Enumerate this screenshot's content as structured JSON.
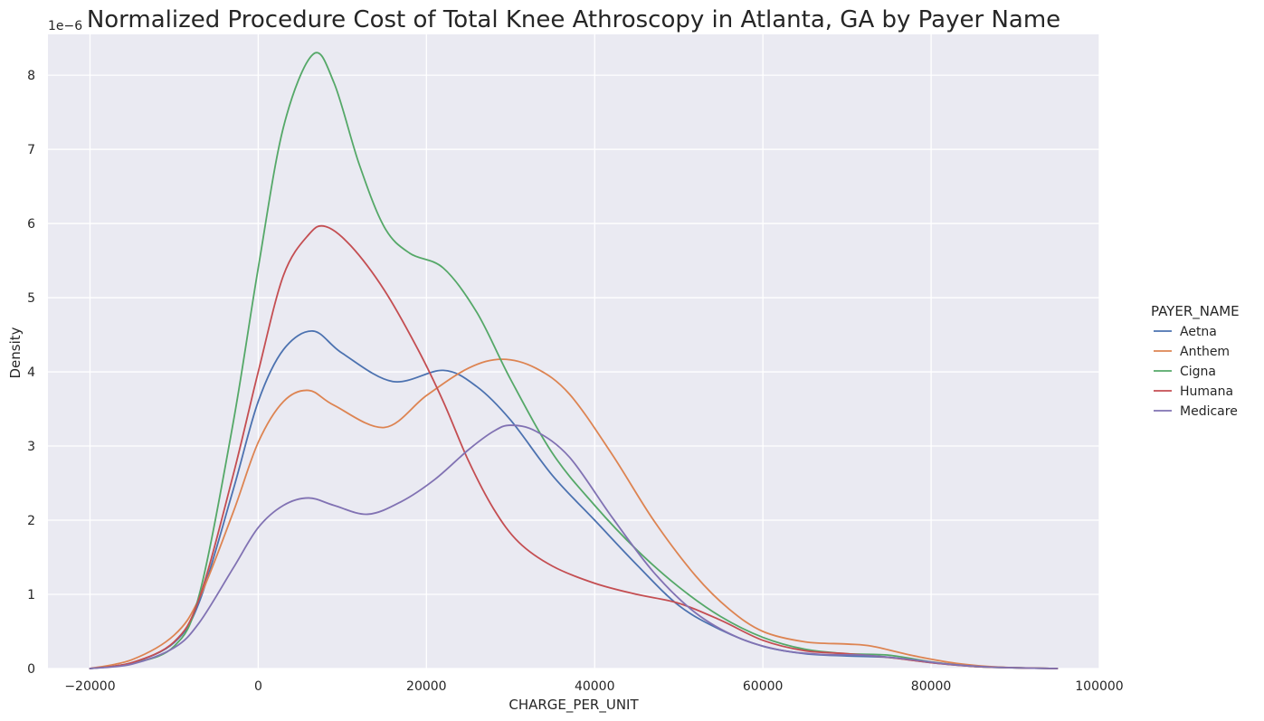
{
  "chart_data": {
    "type": "line",
    "title": "Normalized Procedure Cost of Total Knee Athroscopy in Atlanta, GA by Payer Name",
    "xlabel": "CHARGE_PER_UNIT",
    "ylabel": "Density",
    "y_offset_text": "1e−6",
    "xlim": [
      -25000,
      100000
    ],
    "ylim": [
      0,
      8.55
    ],
    "x_ticks": [
      -20000,
      0,
      20000,
      40000,
      60000,
      80000,
      100000
    ],
    "x_tick_labels": [
      "−20000",
      "0",
      "20000",
      "40000",
      "60000",
      "80000",
      "100000"
    ],
    "y_ticks": [
      0,
      1,
      2,
      3,
      4,
      5,
      6,
      7,
      8
    ],
    "y_tick_labels": [
      "0",
      "1",
      "2",
      "3",
      "4",
      "5",
      "6",
      "7",
      "8"
    ],
    "grid": true,
    "background": "#eaeaf2",
    "legend_title": "PAYER_NAME",
    "legend_position": "right",
    "series": [
      {
        "name": "Aetna",
        "color": "#4c72b0",
        "x": [
          -20000,
          -15000,
          -10000,
          -7000,
          -3000,
          0,
          3000,
          6500,
          10000,
          16000,
          22000,
          26000,
          30000,
          35000,
          40000,
          45000,
          50000,
          55000,
          60000,
          65000,
          70000,
          75000,
          80000,
          85000,
          90000,
          95000
        ],
        "y": [
          0.0,
          0.08,
          0.35,
          0.9,
          2.4,
          3.6,
          4.3,
          4.55,
          4.25,
          3.87,
          4.02,
          3.8,
          3.35,
          2.6,
          2.0,
          1.4,
          0.85,
          0.52,
          0.3,
          0.2,
          0.17,
          0.15,
          0.08,
          0.03,
          0.01,
          0.0
        ]
      },
      {
        "name": "Anthem",
        "color": "#dd8452",
        "x": [
          -20000,
          -15000,
          -10000,
          -7000,
          -3000,
          0,
          3000,
          6000,
          9000,
          15000,
          20000,
          25000,
          29000,
          33000,
          37000,
          42000,
          47000,
          52000,
          56000,
          60000,
          65000,
          70000,
          73000,
          78000,
          83000,
          88000,
          95000
        ],
        "y": [
          0.0,
          0.12,
          0.45,
          0.95,
          2.1,
          3.05,
          3.6,
          3.75,
          3.55,
          3.25,
          3.68,
          4.05,
          4.17,
          4.05,
          3.7,
          2.9,
          2.0,
          1.25,
          0.8,
          0.5,
          0.36,
          0.33,
          0.3,
          0.17,
          0.07,
          0.02,
          0.0
        ]
      },
      {
        "name": "Cigna",
        "color": "#55a868",
        "x": [
          -20000,
          -15000,
          -10000,
          -7000,
          -3000,
          0,
          3000,
          6500,
          9000,
          12000,
          15000,
          18000,
          22000,
          26000,
          30000,
          35000,
          40000,
          45000,
          50000,
          55000,
          60000,
          65000,
          70000,
          75000,
          80000,
          85000,
          90000,
          95000
        ],
        "y": [
          0.0,
          0.07,
          0.3,
          1.0,
          3.3,
          5.4,
          7.3,
          8.28,
          7.9,
          6.8,
          5.95,
          5.6,
          5.4,
          4.8,
          3.9,
          2.9,
          2.2,
          1.6,
          1.1,
          0.7,
          0.42,
          0.26,
          0.2,
          0.18,
          0.09,
          0.03,
          0.01,
          0.0
        ]
      },
      {
        "name": "Humana",
        "color": "#c44e52",
        "x": [
          -20000,
          -15000,
          -10000,
          -7000,
          -3000,
          0,
          3000,
          6000,
          8000,
          11000,
          15000,
          19000,
          22000,
          25000,
          28000,
          31000,
          35000,
          40000,
          45000,
          50000,
          55000,
          60000,
          65000,
          70000,
          75000,
          80000,
          85000,
          90000,
          95000
        ],
        "y": [
          0.0,
          0.08,
          0.36,
          0.95,
          2.6,
          4.0,
          5.3,
          5.85,
          5.96,
          5.7,
          5.1,
          4.3,
          3.6,
          2.8,
          2.15,
          1.7,
          1.38,
          1.15,
          1.0,
          0.88,
          0.65,
          0.38,
          0.24,
          0.2,
          0.15,
          0.08,
          0.03,
          0.01,
          0.0
        ]
      },
      {
        "name": "Medicare",
        "color": "#8172b3",
        "x": [
          -20000,
          -15000,
          -10000,
          -7000,
          -3000,
          0,
          3000,
          6000,
          9000,
          13000,
          17000,
          21000,
          25000,
          28000,
          30000,
          33000,
          37000,
          42000,
          47000,
          52000,
          57000,
          62000,
          67000,
          72000,
          77000,
          82000,
          87000,
          92000,
          95000
        ],
        "y": [
          0.0,
          0.06,
          0.28,
          0.62,
          1.35,
          1.9,
          2.2,
          2.3,
          2.2,
          2.08,
          2.25,
          2.55,
          2.95,
          3.2,
          3.28,
          3.2,
          2.85,
          2.05,
          1.3,
          0.75,
          0.42,
          0.25,
          0.19,
          0.18,
          0.13,
          0.06,
          0.02,
          0.005,
          0.0
        ]
      }
    ]
  }
}
